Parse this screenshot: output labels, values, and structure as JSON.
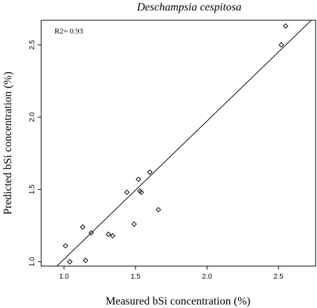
{
  "chart_data": {
    "type": "scatter",
    "title": "Deschampsia cespitosa",
    "xlabel": "Measured bSi concentration (%)",
    "ylabel": "Predicted bSi concentration (%)",
    "annotation": "R2= 0.93",
    "xlim": [
      0.84,
      2.76
    ],
    "ylim": [
      0.97,
      2.67
    ],
    "xticks": [
      {
        "value": 1.0,
        "label": "1.0"
      },
      {
        "value": 1.5,
        "label": "1.5"
      },
      {
        "value": 2.0,
        "label": "2.0"
      },
      {
        "value": 2.5,
        "label": "2.5"
      }
    ],
    "yticks": [
      {
        "value": 1.0,
        "label": "1.0"
      },
      {
        "value": 1.5,
        "label": "1.5"
      },
      {
        "value": 2.0,
        "label": "2.0"
      },
      {
        "value": 2.5,
        "label": "2.5"
      }
    ],
    "points": [
      {
        "x": 1.01,
        "y": 1.11
      },
      {
        "x": 1.04,
        "y": 1.0
      },
      {
        "x": 1.13,
        "y": 1.24
      },
      {
        "x": 1.15,
        "y": 1.01
      },
      {
        "x": 1.19,
        "y": 1.2
      },
      {
        "x": 1.31,
        "y": 1.19
      },
      {
        "x": 1.34,
        "y": 1.18
      },
      {
        "x": 1.44,
        "y": 1.48
      },
      {
        "x": 1.49,
        "y": 1.26
      },
      {
        "x": 1.52,
        "y": 1.57
      },
      {
        "x": 1.53,
        "y": 1.49
      },
      {
        "x": 1.54,
        "y": 1.48
      },
      {
        "x": 1.6,
        "y": 1.62
      },
      {
        "x": 1.66,
        "y": 1.36
      },
      {
        "x": 2.52,
        "y": 2.5
      },
      {
        "x": 2.55,
        "y": 2.63
      }
    ],
    "fit_line": {
      "x": [
        0.95,
        2.73
      ],
      "y": [
        0.97,
        2.67
      ]
    },
    "grid": false,
    "legend": "none"
  }
}
